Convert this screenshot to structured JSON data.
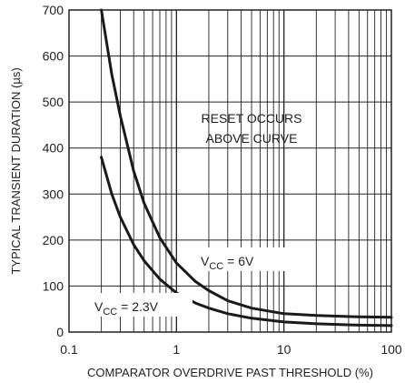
{
  "chart_data": {
    "type": "line",
    "title": "",
    "xlabel": "COMPARATOR OVERDRIVE PAST THRESHOLD (%)",
    "ylabel": "TYPICAL TRANSIENT DURATION (µs)",
    "x_scale": "log",
    "xlim": [
      0.1,
      100
    ],
    "ylim": [
      0,
      700
    ],
    "grid": true,
    "x_ticks": [
      {
        "value": 0.1,
        "label": "0.1"
      },
      {
        "value": 1,
        "label": "1"
      },
      {
        "value": 10,
        "label": "10"
      },
      {
        "value": 100,
        "label": "100"
      }
    ],
    "y_ticks": [
      {
        "value": 0,
        "label": "0"
      },
      {
        "value": 100,
        "label": "100"
      },
      {
        "value": 200,
        "label": "200"
      },
      {
        "value": 300,
        "label": "300"
      },
      {
        "value": 400,
        "label": "400"
      },
      {
        "value": 500,
        "label": "500"
      },
      {
        "value": 600,
        "label": "600"
      },
      {
        "value": 700,
        "label": "700"
      }
    ],
    "annotation": [
      "RESET OCCURS",
      "ABOVE CURVE"
    ],
    "series": [
      {
        "label_main": "V",
        "label_sub": "CC",
        "label_value": " = 6V",
        "x": [
          0.2,
          0.25,
          0.3,
          0.4,
          0.5,
          0.7,
          1,
          1.5,
          2,
          3,
          5,
          10,
          20,
          50,
          100
        ],
        "y": [
          700,
          560,
          470,
          350,
          280,
          205,
          150,
          110,
          90,
          68,
          52,
          40,
          36,
          33,
          32
        ]
      },
      {
        "label_main": "V",
        "label_sub": "CC",
        "label_value": " = 2.3V",
        "x": [
          0.2,
          0.25,
          0.3,
          0.4,
          0.5,
          0.7,
          1,
          1.5,
          2,
          3,
          5,
          10,
          20,
          50,
          100
        ],
        "y": [
          380,
          300,
          250,
          190,
          155,
          115,
          85,
          63,
          52,
          40,
          30,
          22,
          18,
          15,
          14
        ]
      }
    ]
  }
}
